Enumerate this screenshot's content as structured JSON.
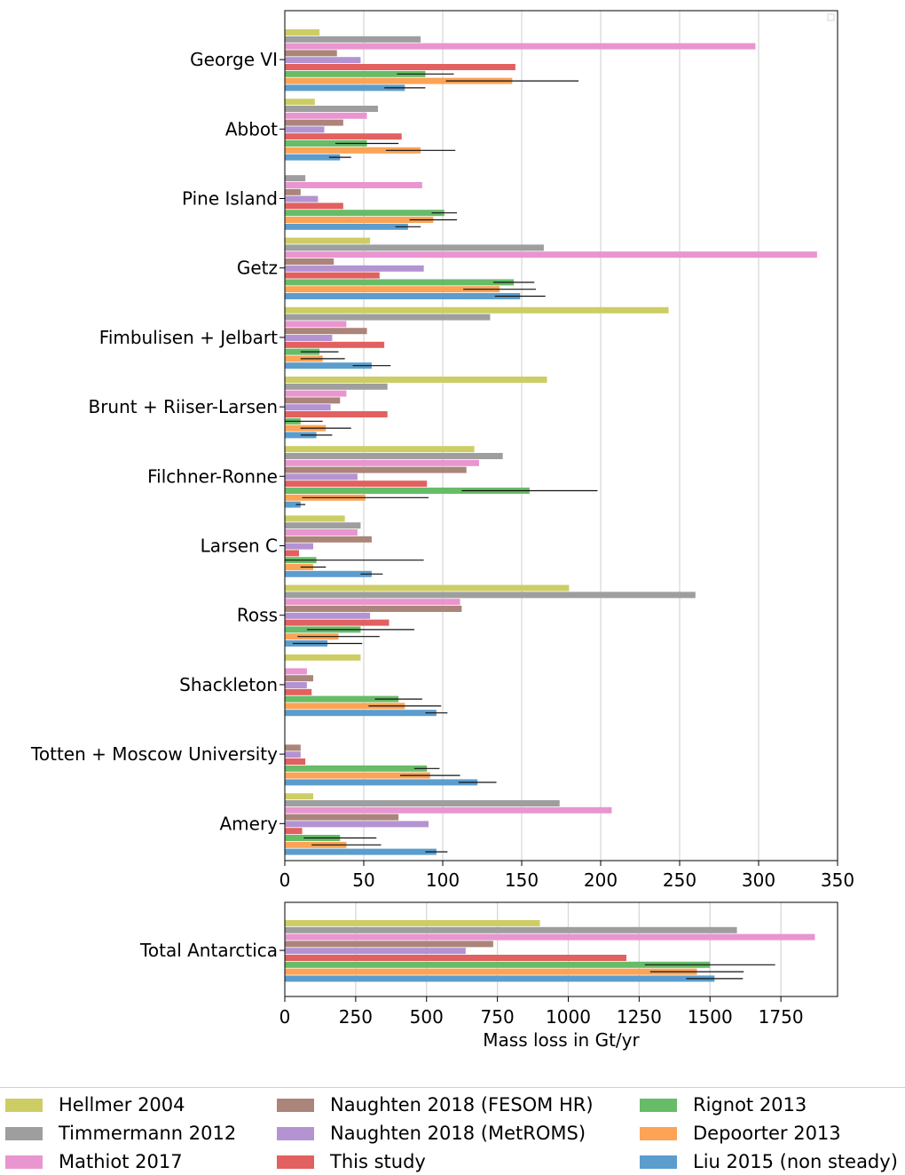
{
  "chart_data": [
    {
      "type": "bar",
      "orientation": "horizontal",
      "categories": [
        "George VI",
        "Abbot",
        "Pine Island",
        "Getz",
        "Fimbulisen + Jelbart",
        "Brunt + Riiser-Larsen",
        "Filchner-Ronne",
        "Larsen C",
        "Ross",
        "Shackleton",
        "Totten + Moscow University",
        "Amery"
      ],
      "xlim": [
        0,
        350
      ],
      "xticks": [
        "0",
        "50",
        "100",
        "150",
        "200",
        "250",
        "300",
        "350"
      ],
      "xlabel": "",
      "ylabel": "",
      "grid": "vertical",
      "series": [
        {
          "name": "Hellmer 2004",
          "color": "#cdcd65",
          "values": [
            22,
            19,
            null,
            54,
            243,
            166,
            120,
            38,
            180,
            48,
            null,
            18
          ],
          "errors": [
            null,
            null,
            null,
            null,
            null,
            null,
            null,
            null,
            null,
            null,
            null,
            null
          ]
        },
        {
          "name": "Timmermann 2012",
          "color": "#9e9e9e",
          "values": [
            86,
            59,
            13,
            164,
            130,
            65,
            138,
            48,
            260,
            null,
            null,
            174
          ],
          "errors": [
            null,
            null,
            null,
            null,
            null,
            null,
            null,
            null,
            null,
            null,
            null,
            null
          ]
        },
        {
          "name": "Mathiot 2017",
          "color": "#e995cf",
          "values": [
            298,
            52,
            87,
            337,
            39,
            39,
            123,
            46,
            111,
            14,
            null,
            207
          ],
          "errors": [
            null,
            null,
            null,
            null,
            null,
            null,
            null,
            null,
            null,
            null,
            null,
            null
          ]
        },
        {
          "name": "Naughten 2018 (FESOM HR)",
          "color": "#ab847a",
          "values": [
            33,
            37,
            10,
            31,
            52,
            35,
            115,
            55,
            112,
            18,
            10,
            72
          ],
          "errors": [
            null,
            null,
            null,
            null,
            null,
            null,
            null,
            null,
            null,
            null,
            null,
            null
          ]
        },
        {
          "name": "Naughten 2018 (MetROMS)",
          "color": "#b493d2",
          "values": [
            48,
            25,
            21,
            88,
            30,
            29,
            46,
            18,
            54,
            14,
            10,
            91
          ],
          "errors": [
            null,
            null,
            null,
            null,
            null,
            null,
            null,
            null,
            null,
            null,
            null,
            null
          ]
        },
        {
          "name": "This study",
          "color": "#e2605f",
          "values": [
            146,
            74,
            37,
            60,
            63,
            65,
            90,
            9,
            66,
            17,
            13,
            11
          ],
          "errors": [
            null,
            null,
            null,
            null,
            null,
            null,
            null,
            null,
            null,
            null,
            null,
            null
          ]
        },
        {
          "name": "Rignot 2013",
          "color": "#67bc67",
          "values": [
            89,
            52,
            101,
            145,
            22,
            10,
            155,
            20,
            48,
            72,
            90,
            35
          ],
          "errors": [
            18,
            20,
            8,
            13,
            12,
            14,
            43,
            68,
            34,
            15,
            8,
            23
          ]
        },
        {
          "name": "Depoorter 2013",
          "color": "#fca355",
          "values": [
            144,
            86,
            94,
            136,
            24,
            26,
            51,
            18,
            34,
            76,
            92,
            39
          ],
          "errors": [
            42,
            22,
            15,
            23,
            14,
            16,
            40,
            8,
            26,
            23,
            19,
            22
          ]
        },
        {
          "name": "Liu 2015 (non steady)",
          "color": "#5b9dce",
          "values": [
            76,
            35,
            78,
            149,
            55,
            20,
            10,
            55,
            27,
            96,
            122,
            96
          ],
          "errors": [
            13,
            7,
            8,
            16,
            12,
            10,
            3,
            7,
            22,
            7,
            12,
            7
          ]
        }
      ]
    },
    {
      "type": "bar",
      "orientation": "horizontal",
      "categories": [
        "Total Antarctica"
      ],
      "xlim": [
        0,
        1950
      ],
      "xticks": [
        "0",
        "250",
        "500",
        "750",
        "1000",
        "1250",
        "1500",
        "1750"
      ],
      "xlabel": "Mass loss in Gt/yr",
      "ylabel": "",
      "grid": "vertical",
      "series": [
        {
          "name": "Hellmer 2004",
          "color": "#cdcd65",
          "values": [
            900
          ],
          "errors": [
            null
          ]
        },
        {
          "name": "Timmermann 2012",
          "color": "#9e9e9e",
          "values": [
            1595
          ],
          "errors": [
            null
          ]
        },
        {
          "name": "Mathiot 2017",
          "color": "#e995cf",
          "values": [
            1870
          ],
          "errors": [
            null
          ]
        },
        {
          "name": "Naughten 2018 (FESOM HR)",
          "color": "#ab847a",
          "values": [
            735
          ],
          "errors": [
            null
          ]
        },
        {
          "name": "Naughten 2018 (MetROMS)",
          "color": "#b493d2",
          "values": [
            638
          ],
          "errors": [
            null
          ]
        },
        {
          "name": "This study",
          "color": "#e2605f",
          "values": [
            1205
          ],
          "errors": [
            null
          ]
        },
        {
          "name": "Rignot 2013",
          "color": "#67bc67",
          "values": [
            1500
          ],
          "errors": [
            230
          ]
        },
        {
          "name": "Depoorter 2013",
          "color": "#fca355",
          "values": [
            1454
          ],
          "errors": [
            165
          ]
        },
        {
          "name": "Liu 2015 (non steady)",
          "color": "#5b9dce",
          "values": [
            1516
          ],
          "errors": [
            100
          ]
        }
      ]
    }
  ],
  "legend": {
    "placement": "bottom",
    "items": [
      {
        "label": "Hellmer 2004",
        "color": "#cdcd65"
      },
      {
        "label": "Timmermann 2012",
        "color": "#9e9e9e"
      },
      {
        "label": "Mathiot 2017",
        "color": "#e995cf"
      },
      {
        "label": "Naughten 2018 (FESOM HR)",
        "color": "#ab847a"
      },
      {
        "label": "Naughten 2018 (MetROMS)",
        "color": "#b493d2"
      },
      {
        "label": "This study",
        "color": "#e2605f"
      },
      {
        "label": "Rignot 2013",
        "color": "#67bc67"
      },
      {
        "label": "Depoorter 2013",
        "color": "#fca355"
      },
      {
        "label": "Liu 2015 (non steady)",
        "color": "#5b9dce"
      }
    ]
  }
}
